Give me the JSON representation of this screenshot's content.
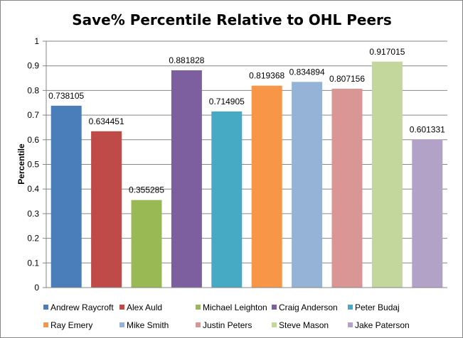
{
  "chart_data": {
    "type": "bar",
    "title": "Save% Percentile Relative to OHL Peers",
    "ylabel": "Percentile",
    "xlabel": "",
    "ylim": [
      0,
      1
    ],
    "yticks": [
      "0",
      "0.1",
      "0.2",
      "0.3",
      "0.4",
      "0.5",
      "0.6",
      "0.7",
      "0.8",
      "0.9",
      "1"
    ],
    "grid": true,
    "legend_position": "bottom",
    "series": [
      {
        "name": "Andrew Raycroft",
        "value": 0.738105,
        "label": "0.738105",
        "color": "#4A7EBB"
      },
      {
        "name": "Alex Auld",
        "value": 0.634451,
        "label": "0.634451",
        "color": "#BE4B48"
      },
      {
        "name": "Michael Leighton",
        "value": 0.355285,
        "label": "0.355285",
        "color": "#98B954"
      },
      {
        "name": "Craig Anderson",
        "value": 0.881828,
        "label": "0.881828",
        "color": "#7D5FA0"
      },
      {
        "name": "Peter Budaj",
        "value": 0.714905,
        "label": "0.714905",
        "color": "#46AAC5"
      },
      {
        "name": "Ray Emery",
        "value": 0.819368,
        "label": "0.819368",
        "color": "#F79646"
      },
      {
        "name": "Mike Smith",
        "value": 0.834894,
        "label": "0.834894",
        "color": "#95B3D7"
      },
      {
        "name": "Justin Peters",
        "value": 0.807156,
        "label": "0.807156",
        "color": "#D99694"
      },
      {
        "name": "Steve Mason",
        "value": 0.917015,
        "label": "0.917015",
        "color": "#C3D69B"
      },
      {
        "name": "Jake Paterson",
        "value": 0.601331,
        "label": "0.601331",
        "color": "#B2A2C7"
      }
    ]
  }
}
